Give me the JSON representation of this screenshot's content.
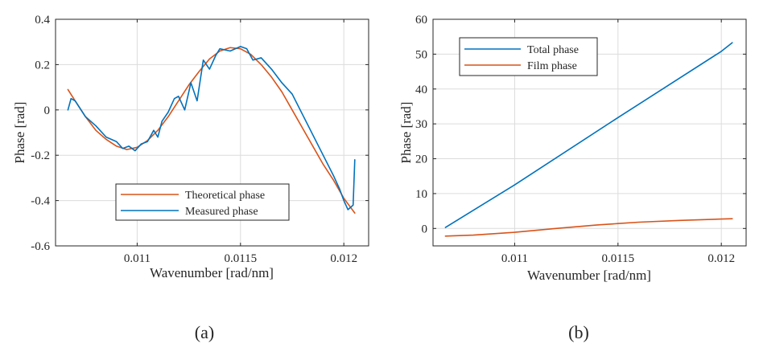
{
  "chart_data": [
    {
      "type": "line",
      "panel_label": "(a)",
      "xlabel": "Wavenumber [rad/nm]",
      "ylabel": "Phase [rad]",
      "xlim": [
        0.010605,
        0.01212
      ],
      "ylim": [
        -0.6,
        0.4
      ],
      "xticks": [
        0.011,
        0.0115,
        0.012
      ],
      "xtick_labels": [
        "0.011",
        "0.0115",
        "0.012"
      ],
      "yticks": [
        -0.6,
        -0.4,
        -0.2,
        0,
        0.2,
        0.4
      ],
      "ytick_labels": [
        "-0.6",
        "-0.4",
        "-0.2",
        "0",
        "0.2",
        "0.4"
      ],
      "grid": true,
      "legend_position": "bottom-center",
      "colors": {
        "theoretical": "#d95319",
        "measured": "#0072bd"
      },
      "series": [
        {
          "name": "Theoretical phase",
          "color": "#d95319",
          "x": [
            0.010665,
            0.0107,
            0.01075,
            0.0108,
            0.01085,
            0.0109,
            0.01095,
            0.011,
            0.01105,
            0.0111,
            0.01115,
            0.0112,
            0.01125,
            0.0113,
            0.01135,
            0.0114,
            0.01145,
            0.0115,
            0.01155,
            0.0116,
            0.01165,
            0.0117,
            0.01175,
            0.0118,
            0.01185,
            0.0119,
            0.01195,
            0.012,
            0.012053
          ],
          "values": [
            0.09,
            0.04,
            -0.03,
            -0.09,
            -0.13,
            -0.16,
            -0.175,
            -0.165,
            -0.135,
            -0.09,
            -0.03,
            0.04,
            0.11,
            0.17,
            0.225,
            0.26,
            0.275,
            0.27,
            0.245,
            0.2,
            0.145,
            0.08,
            0.0,
            -0.08,
            -0.16,
            -0.24,
            -0.31,
            -0.39,
            -0.455
          ]
        },
        {
          "name": "Measured phase",
          "color": "#0072bd",
          "x": [
            0.010665,
            0.01068,
            0.0107,
            0.01075,
            0.0108,
            0.01085,
            0.0109,
            0.01093,
            0.01096,
            0.01099,
            0.01102,
            0.01105,
            0.01108,
            0.0111,
            0.01112,
            0.01115,
            0.01118,
            0.0112,
            0.01123,
            0.01126,
            0.01129,
            0.01132,
            0.01135,
            0.01138,
            0.0114,
            0.01145,
            0.0115,
            0.01153,
            0.01156,
            0.0116,
            0.01165,
            0.0117,
            0.01175,
            0.0118,
            0.01185,
            0.0119,
            0.01195,
            0.01198,
            0.012,
            0.01202,
            0.012045,
            0.012053
          ],
          "values": [
            0.0,
            0.05,
            0.04,
            -0.03,
            -0.07,
            -0.12,
            -0.14,
            -0.17,
            -0.16,
            -0.18,
            -0.15,
            -0.14,
            -0.09,
            -0.12,
            -0.05,
            -0.01,
            0.05,
            0.06,
            0.0,
            0.12,
            0.04,
            0.22,
            0.18,
            0.24,
            0.27,
            0.26,
            0.28,
            0.27,
            0.22,
            0.23,
            0.18,
            0.12,
            0.07,
            -0.02,
            -0.11,
            -0.2,
            -0.29,
            -0.35,
            -0.4,
            -0.44,
            -0.42,
            -0.22
          ]
        }
      ]
    },
    {
      "type": "line",
      "panel_label": "(b)",
      "xlabel": "Wavenumber [rad/nm]",
      "ylabel": "Phase [rad]",
      "xlim": [
        0.010605,
        0.01212
      ],
      "ylim": [
        -5,
        60
      ],
      "xticks": [
        0.011,
        0.0115,
        0.012
      ],
      "xtick_labels": [
        "0.011",
        "0.0115",
        "0.012"
      ],
      "yticks": [
        0,
        10,
        20,
        30,
        40,
        50,
        60
      ],
      "ytick_labels": [
        "0",
        "10",
        "20",
        "30",
        "40",
        "50",
        "60"
      ],
      "grid": true,
      "legend_position": "top-left",
      "colors": {
        "total": "#0072bd",
        "film": "#d95319"
      },
      "series": [
        {
          "name": "Total phase",
          "color": "#0072bd",
          "x": [
            0.010665,
            0.011,
            0.0115,
            0.012,
            0.012053
          ],
          "values": [
            0.3,
            12.5,
            31.8,
            50.8,
            53.3
          ]
        },
        {
          "name": "Film phase",
          "color": "#d95319",
          "x": [
            0.010665,
            0.0108,
            0.011,
            0.0112,
            0.0114,
            0.0115,
            0.0116,
            0.0118,
            0.012,
            0.012053
          ],
          "values": [
            -2.2,
            -1.9,
            -1.1,
            0.0,
            1.0,
            1.4,
            1.8,
            2.3,
            2.7,
            2.8
          ]
        }
      ]
    }
  ]
}
